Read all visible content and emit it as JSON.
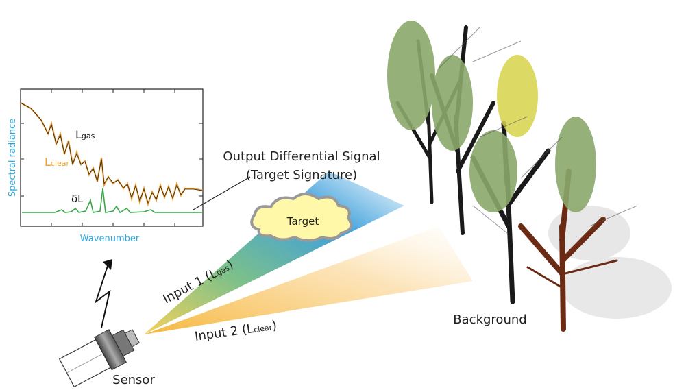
{
  "plot": {
    "y_axis_label": "Spectral radiance",
    "x_axis_label": "Wavenumber",
    "curve_gas": {
      "base": "L",
      "sub": "gas"
    },
    "curve_clear": {
      "base": "L",
      "sub": "clear"
    },
    "curve_diff": "δL"
  },
  "output": {
    "line1": "Output Differential Signal",
    "line2": "(Target Signature)"
  },
  "target": "Target",
  "input1": {
    "prefix": "Input 1 (",
    "base": "L",
    "sub": "gas",
    "suffix": ")"
  },
  "input2": {
    "prefix": "Input 2 (",
    "base": "L",
    "sub": "clear",
    "suffix": ")"
  },
  "background": "Background",
  "sensor": "Sensor"
}
